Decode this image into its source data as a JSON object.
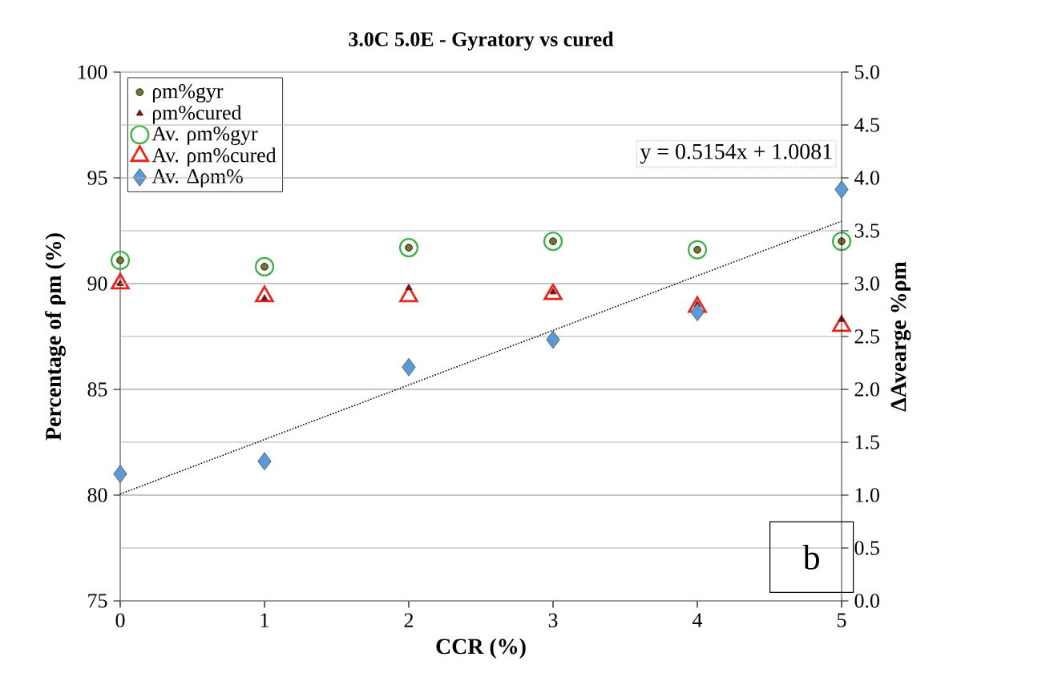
{
  "chart_data": {
    "type": "scatter",
    "title": "3.0C 5.0E - Gyratory vs cured",
    "xlabel": "CCR (%)",
    "ylabel": "Percentage of ρm (%)",
    "y2label": "ΔAvearge %ρm",
    "x": [
      0,
      1,
      2,
      3,
      4,
      5
    ],
    "series": [
      {
        "name": "ρm%gyr",
        "color": "#6b7b2a",
        "marker": "circle",
        "values": [
          91.1,
          90.8,
          91.7,
          92.0,
          91.6,
          92.0
        ]
      },
      {
        "name": "ρm%cured",
        "color": "#7a1010",
        "marker": "triangle",
        "values": [
          90.0,
          89.3,
          89.8,
          89.6,
          89.0,
          88.3
        ]
      },
      {
        "name": "Av. ρm%gyr",
        "color": "#3cb043",
        "marker": "circle",
        "values": [
          91.1,
          90.8,
          91.7,
          92.0,
          91.6,
          92.0
        ]
      },
      {
        "name": "Av. ρm%cured",
        "color": "#e8251b",
        "marker": "triangle",
        "values": [
          90.0,
          89.4,
          89.4,
          89.5,
          88.9,
          88.0
        ]
      },
      {
        "name": "Av. Δρm%",
        "color": "#5b9bd5",
        "marker": "diamond",
        "axis": "y2",
        "values": [
          1.2,
          1.32,
          2.21,
          2.47,
          2.73,
          3.89
        ]
      },
      {
        "type": "line",
        "color": "#000000",
        "line_style": "dotted",
        "axis": "y2",
        "x": [
          0,
          5
        ],
        "values": [
          1.01,
          3.59
        ]
      }
    ],
    "xlim": [
      0,
      5
    ],
    "xticks": [
      0,
      1,
      2,
      3,
      4,
      5
    ],
    "ylim": [
      75,
      100
    ],
    "yticks": [
      75,
      80,
      85,
      90,
      95,
      100
    ],
    "y2lim": [
      0,
      5
    ],
    "y2ticks": [
      {
        "value": 0,
        "label": "0.0"
      },
      {
        "value": 0.5,
        "label": "0.5"
      },
      {
        "value": 1,
        "label": "1.0"
      },
      {
        "value": 1.5,
        "label": "1.5"
      },
      {
        "value": 2,
        "label": "2.0"
      },
      {
        "value": 2.5,
        "label": "2.5"
      },
      {
        "value": 3,
        "label": "3.0"
      },
      {
        "value": 3.5,
        "label": "3.5"
      },
      {
        "value": 4,
        "label": "4.0"
      },
      {
        "value": 4.5,
        "label": "4.5"
      },
      {
        "value": 5,
        "label": "5.0"
      }
    ],
    "grid": "y",
    "legend": "top left",
    "annotations": [
      "y = 0.5154x + 1.0081",
      "b"
    ]
  }
}
